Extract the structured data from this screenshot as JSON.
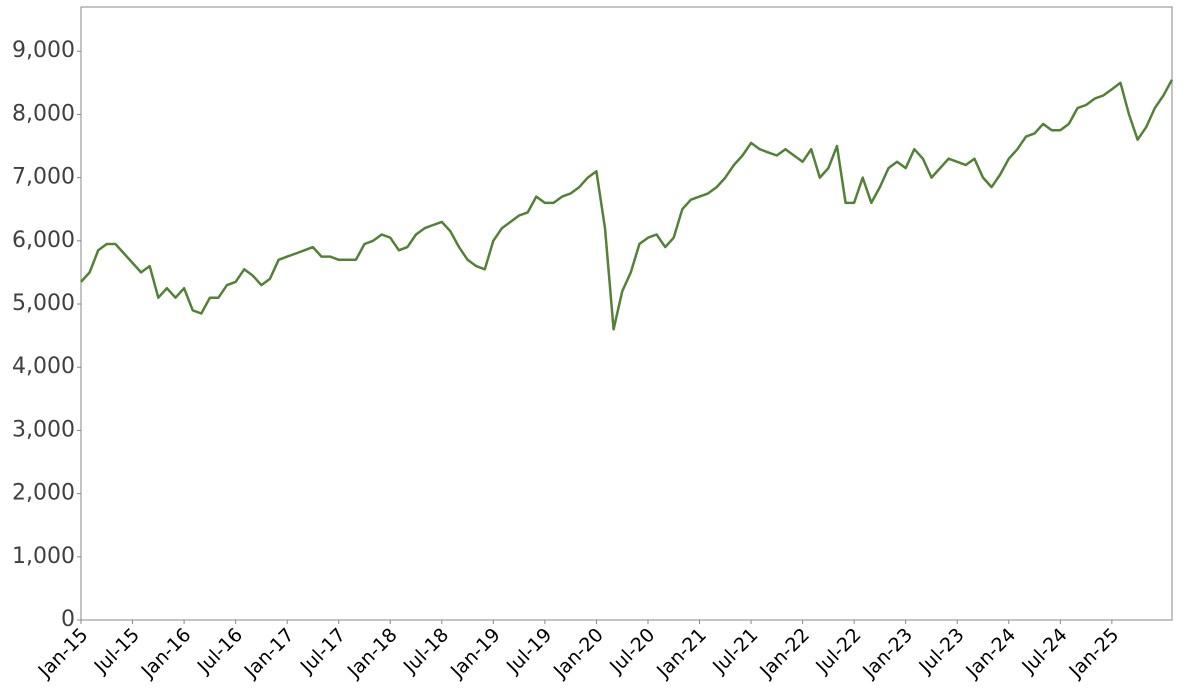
{
  "chart_data": {
    "type": "line",
    "color": "#538135",
    "categories": [
      "Jan-15",
      null,
      null,
      null,
      null,
      null,
      "Jul-15",
      null,
      null,
      null,
      null,
      null,
      "Jan-16",
      null,
      null,
      null,
      null,
      null,
      "Jul-16",
      null,
      null,
      null,
      null,
      null,
      "Jan-17",
      null,
      null,
      null,
      null,
      null,
      "Jul-17",
      null,
      null,
      null,
      null,
      null,
      "Jan-18",
      null,
      null,
      null,
      null,
      null,
      "Jul-18",
      null,
      null,
      null,
      null,
      null,
      "Jan-19",
      null,
      null,
      null,
      null,
      null,
      "Jul-19",
      null,
      null,
      null,
      null,
      null,
      "Jan-20",
      null,
      null,
      null,
      null,
      null,
      "Jul-20",
      null,
      null,
      null,
      null,
      null,
      "Jan-21",
      null,
      null,
      null,
      null,
      null,
      "Jul-21",
      null,
      null,
      null,
      null,
      null,
      "Jan-22",
      null,
      null,
      null,
      null,
      null,
      "Jul-22",
      null,
      null,
      null,
      null,
      null,
      "Jan-23",
      null,
      null,
      null,
      null,
      null,
      "Jul-23",
      null,
      null,
      null,
      null,
      null,
      "Jan-24",
      null,
      null,
      null,
      null,
      null,
      "Jul-24",
      null,
      null,
      null,
      null,
      null,
      "Jan-25",
      null,
      null,
      null,
      null,
      null,
      null,
      null
    ],
    "values": [
      5350,
      5500,
      5850,
      5950,
      5950,
      5800,
      5650,
      5500,
      5600,
      5100,
      5250,
      5100,
      5250,
      4900,
      4850,
      5100,
      5100,
      5300,
      5350,
      5550,
      5450,
      5300,
      5400,
      5700,
      5750,
      5800,
      5850,
      5900,
      5750,
      5750,
      5700,
      5700,
      5700,
      5950,
      6000,
      6100,
      6050,
      5850,
      5900,
      6100,
      6200,
      6250,
      6300,
      6150,
      5900,
      5700,
      5600,
      5550,
      6000,
      6200,
      6300,
      6400,
      6450,
      6700,
      6600,
      6600,
      6700,
      6750,
      6850,
      7000,
      7100,
      6200,
      4600,
      5200,
      5500,
      5950,
      6050,
      6100,
      5900,
      6050,
      6500,
      6650,
      6700,
      6750,
      6850,
      7000,
      7200,
      7350,
      7550,
      7450,
      7400,
      7350,
      7450,
      7350,
      7250,
      7450,
      7000,
      7150,
      7500,
      6600,
      6600,
      7000,
      6600,
      6850,
      7150,
      7250,
      7150,
      7450,
      7300,
      7000,
      7150,
      7300,
      7250,
      7200,
      7300,
      7000,
      6850,
      7050,
      7300,
      7450,
      7650,
      7700,
      7850,
      7750,
      7750,
      7850,
      8100,
      8150,
      8250,
      8300,
      8400,
      8500,
      8000,
      7600,
      7800,
      8100,
      8300,
      8550
    ],
    "ylim": [
      0,
      9700
    ],
    "yticks": [
      0,
      {
        "value": 1000,
        "label": "1,000"
      },
      {
        "value": 2000,
        "label": "2,000"
      },
      {
        "value": 3000,
        "label": "3,000"
      },
      {
        "value": 4000,
        "label": "4,000"
      },
      {
        "value": 5000,
        "label": "5,000"
      },
      {
        "value": 6000,
        "label": "6,000"
      },
      {
        "value": 7000,
        "label": "7,000"
      },
      {
        "value": 8000,
        "label": "8,000"
      },
      {
        "value": 9000,
        "label": "9,000"
      }
    ]
  }
}
